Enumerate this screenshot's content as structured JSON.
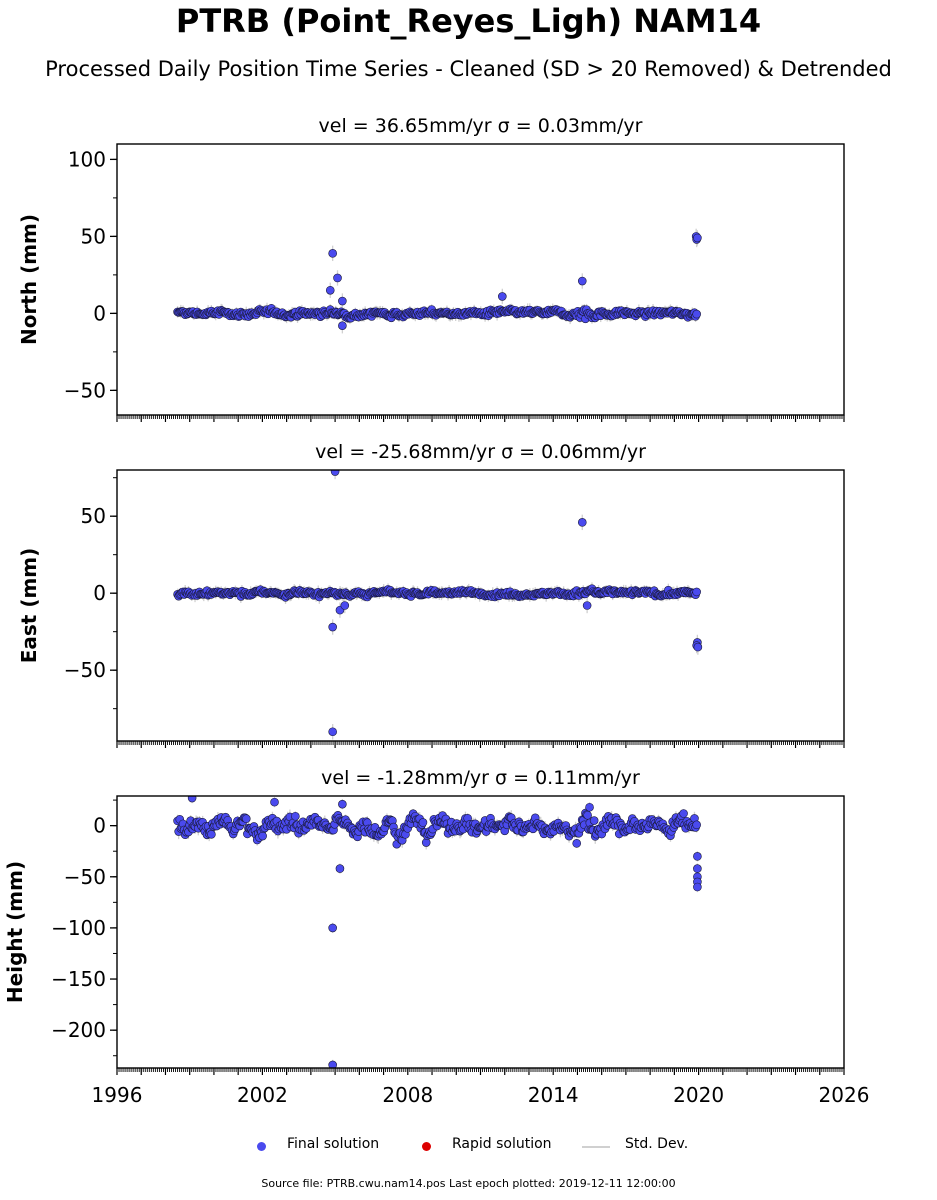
{
  "title": "PTRB (Point_Reyes_Ligh) NAM14",
  "subtitle": "Processed Daily Position Time Series - Cleaned (SD > 20 Removed) & Detrended",
  "source_line": "Source file: PTRB.cwu.nam14.pos  Last epoch plotted: 2019-12-11 12:00:00",
  "legend": {
    "final": "Final solution",
    "rapid": "Rapid solution",
    "std": "Std. Dev."
  },
  "colors": {
    "final": "#4a4aee",
    "final_edge": "#1a1a3a",
    "rapid": "#dd0000",
    "std": "#d0d0d0"
  },
  "chart_data": [
    {
      "type": "scatter",
      "panel": "north",
      "title": "vel = 36.65mm/yr   σ = 0.03mm/yr",
      "ylabel": "North (mm)",
      "xlim": [
        1996,
        2026
      ],
      "ylim": [
        -66,
        110
      ],
      "yticks": [
        -50,
        0,
        50,
        100
      ],
      "xticks": [
        1996,
        2002,
        2008,
        2014,
        2020,
        2026
      ],
      "data_range": [
        1998.5,
        2019.95
      ],
      "noise": 1.8,
      "outliers": [
        {
          "x": 2004.9,
          "y": 39
        },
        {
          "x": 2005.1,
          "y": 23
        },
        {
          "x": 2004.8,
          "y": 15
        },
        {
          "x": 2005.3,
          "y": 8
        },
        {
          "x": 2005.3,
          "y": -8
        },
        {
          "x": 2011.9,
          "y": 11
        },
        {
          "x": 2015.2,
          "y": 21
        },
        {
          "x": 2019.9,
          "y": 50
        },
        {
          "x": 2019.92,
          "y": 48
        },
        {
          "x": 2019.95,
          "y": 49
        }
      ]
    },
    {
      "type": "scatter",
      "panel": "east",
      "title": "vel = -25.68mm/yr   σ = 0.06mm/yr",
      "ylabel": "East (mm)",
      "xlim": [
        1996,
        2026
      ],
      "ylim": [
        -96,
        80
      ],
      "yticks": [
        -50,
        0,
        50
      ],
      "xticks": [
        1996,
        2002,
        2008,
        2014,
        2020,
        2026
      ],
      "data_range": [
        1998.5,
        2019.95
      ],
      "noise": 1.6,
      "outliers": [
        {
          "x": 2005.0,
          "y": 79
        },
        {
          "x": 2015.2,
          "y": 46
        },
        {
          "x": 2004.9,
          "y": -22
        },
        {
          "x": 2005.2,
          "y": -11
        },
        {
          "x": 2005.4,
          "y": -8
        },
        {
          "x": 2004.9,
          "y": -90
        },
        {
          "x": 2015.4,
          "y": -8
        },
        {
          "x": 2019.95,
          "y": -32
        },
        {
          "x": 2019.92,
          "y": -34
        },
        {
          "x": 2019.97,
          "y": -35
        }
      ]
    },
    {
      "type": "scatter",
      "panel": "height",
      "title": "vel = -1.28mm/yr   σ = 0.11mm/yr",
      "ylabel": "Height (mm)",
      "xlim": [
        1996,
        2026
      ],
      "ylim": [
        -237,
        29
      ],
      "yticks": [
        -200,
        -150,
        -100,
        -50,
        0
      ],
      "xticks": [
        1996,
        2002,
        2008,
        2014,
        2020,
        2026
      ],
      "data_range": [
        1998.5,
        2019.95
      ],
      "noise": 7,
      "outliers": [
        {
          "x": 1999.1,
          "y": 27
        },
        {
          "x": 2002.5,
          "y": 23
        },
        {
          "x": 2005.3,
          "y": 21
        },
        {
          "x": 2015.5,
          "y": 18
        },
        {
          "x": 2005.2,
          "y": -42
        },
        {
          "x": 2004.9,
          "y": -100
        },
        {
          "x": 2004.9,
          "y": -234
        },
        {
          "x": 2019.95,
          "y": -30
        },
        {
          "x": 2019.95,
          "y": -42
        },
        {
          "x": 2019.95,
          "y": -50
        },
        {
          "x": 2019.95,
          "y": -55
        },
        {
          "x": 2019.95,
          "y": -60
        }
      ]
    }
  ]
}
